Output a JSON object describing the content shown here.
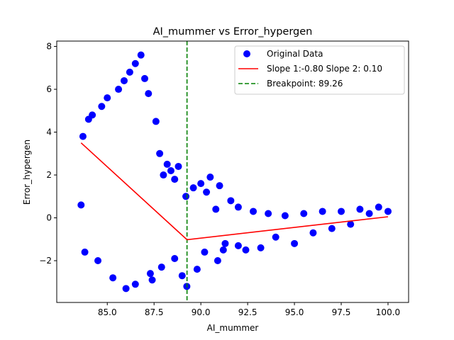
{
  "chart_data": {
    "type": "scatter",
    "title": "AI_mummer vs Error_hypergen",
    "xlabel": "AI_mummer",
    "ylabel": "Error_hypergen",
    "xlim": [
      82.3,
      101.1
    ],
    "ylim": [
      -3.95,
      8.25
    ],
    "x_ticks": [
      85.0,
      87.5,
      90.0,
      92.5,
      95.0,
      97.5,
      100.0
    ],
    "x_tick_labels": [
      "85.0",
      "87.5",
      "90.0",
      "92.5",
      "95.0",
      "97.5",
      "100.0"
    ],
    "y_ticks": [
      -2,
      0,
      2,
      4,
      6,
      8
    ],
    "y_tick_labels": [
      "−2",
      "0",
      "2",
      "4",
      "6",
      "8"
    ],
    "grid": false,
    "legend_position": "top-right",
    "colors": {
      "points": "#0000ff",
      "fit": "#ff0000",
      "breakpoint": "#008000"
    },
    "series": [
      {
        "name": "Original Data",
        "kind": "scatter",
        "color": "#0000ff",
        "x": [
          83.6,
          83.7,
          83.8,
          84.0,
          84.2,
          84.5,
          84.7,
          85.0,
          85.3,
          85.6,
          85.9,
          86.2,
          86.5,
          86.8,
          87.0,
          87.2,
          87.4,
          87.6,
          87.8,
          88.0,
          88.2,
          88.4,
          88.6,
          88.8,
          89.0,
          89.2,
          89.25,
          89.6,
          90.0,
          90.3,
          90.5,
          90.8,
          91.0,
          91.3,
          91.6,
          92.0,
          92.4,
          92.8,
          93.2,
          93.6,
          94.0,
          94.5,
          95.0,
          95.5,
          96.0,
          96.5,
          97.0,
          97.5,
          98.0,
          98.5,
          99.0,
          99.5,
          100.0,
          86.0,
          86.5,
          87.3,
          87.9,
          88.6,
          89.8,
          90.2,
          90.9,
          91.2,
          92.0
        ],
        "y": [
          0.6,
          3.8,
          -1.6,
          4.6,
          4.8,
          -2.0,
          5.2,
          5.6,
          -2.8,
          6.0,
          6.4,
          6.8,
          7.2,
          7.6,
          6.5,
          5.8,
          -2.9,
          4.5,
          3.0,
          2.0,
          2.5,
          2.2,
          1.8,
          2.4,
          -2.7,
          1.0,
          -3.2,
          1.4,
          1.6,
          1.2,
          1.9,
          0.4,
          1.5,
          -1.2,
          0.8,
          0.5,
          -1.5,
          0.3,
          -1.4,
          0.2,
          -0.9,
          0.1,
          -1.2,
          0.2,
          -0.7,
          0.3,
          -0.5,
          0.3,
          -0.3,
          0.4,
          0.2,
          0.5,
          0.3,
          -3.3,
          -3.1,
          -2.6,
          -2.3,
          -1.9,
          -2.4,
          -1.6,
          -2.0,
          -1.5,
          -1.3
        ]
      },
      {
        "name": "Slope 1:-0.80 Slope 2: 0.10",
        "kind": "line",
        "color": "#ff0000",
        "x": [
          83.6,
          89.26,
          100.0
        ],
        "y": [
          3.5,
          -1.02,
          0.05
        ]
      },
      {
        "name": "Breakpoint: 89.26",
        "kind": "vline",
        "color": "#008000",
        "x": 89.26
      }
    ]
  }
}
